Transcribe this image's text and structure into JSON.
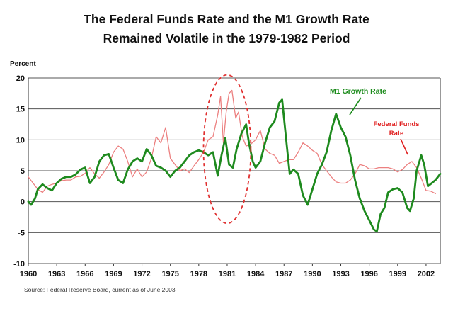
{
  "colors": {
    "m1": "#1e8a1e",
    "fedfunds": "#ec8080",
    "annotation_red": "#e02020",
    "grid": "#555555",
    "circle": "#e03030"
  },
  "chart_data": {
    "type": "line",
    "title": "The Federal Funds Rate and the M1 Growth Rate Remained Volatile in the 1979-1982 Period",
    "title_lines": [
      "The Federal Funds Rate and the M1 Growth Rate",
      "Remained Volatile in the 1979-1982 Period"
    ],
    "ylabel": "Percent",
    "xlabel": "",
    "ylim": [
      -10,
      20
    ],
    "xlim": [
      1960,
      2003.5
    ],
    "grid": true,
    "yticks": [
      {
        "value": 20,
        "label": "20"
      },
      {
        "value": 15,
        "label": "15"
      },
      {
        "value": 10,
        "label": "10"
      },
      {
        "value": 5,
        "label": "5"
      },
      {
        "value": 0,
        "label": "0"
      },
      {
        "value": -5,
        "label": "-5"
      },
      {
        "value": -10,
        "label": "-10"
      }
    ],
    "xticks": [
      {
        "value": 1960,
        "label": "1960"
      },
      {
        "value": 1963,
        "label": "1963"
      },
      {
        "value": 1966,
        "label": "1966"
      },
      {
        "value": 1969,
        "label": "1969"
      },
      {
        "value": 1972,
        "label": "1972"
      },
      {
        "value": 1975,
        "label": "1975"
      },
      {
        "value": 1978,
        "label": "1978"
      },
      {
        "value": 1981,
        "label": "1981"
      },
      {
        "value": 1984,
        "label": "1984"
      },
      {
        "value": 1987,
        "label": "1987"
      },
      {
        "value": 1990,
        "label": "1990"
      },
      {
        "value": 1993,
        "label": "1993"
      },
      {
        "value": 1996,
        "label": "1996"
      },
      {
        "value": 1999,
        "label": "1999"
      },
      {
        "value": 2002,
        "label": "2002"
      }
    ],
    "series": [
      {
        "name": "Federal Funds Rate",
        "label_lines": [
          "Federal Funds",
          "Rate"
        ],
        "color": "#ec8080",
        "points": [
          [
            1960.0,
            4.0
          ],
          [
            1960.5,
            3.0
          ],
          [
            1961.0,
            2.0
          ],
          [
            1961.5,
            1.5
          ],
          [
            1962.0,
            2.5
          ],
          [
            1962.5,
            2.8
          ],
          [
            1963.0,
            3.0
          ],
          [
            1963.5,
            3.4
          ],
          [
            1964.0,
            3.5
          ],
          [
            1964.5,
            3.5
          ],
          [
            1965.0,
            4.0
          ],
          [
            1965.5,
            4.1
          ],
          [
            1966.0,
            4.6
          ],
          [
            1966.5,
            5.5
          ],
          [
            1967.0,
            4.5
          ],
          [
            1967.5,
            3.8
          ],
          [
            1968.0,
            4.8
          ],
          [
            1968.5,
            6.0
          ],
          [
            1969.0,
            8.0
          ],
          [
            1969.5,
            9.0
          ],
          [
            1970.0,
            8.5
          ],
          [
            1970.5,
            6.5
          ],
          [
            1971.0,
            4.0
          ],
          [
            1971.5,
            5.3
          ],
          [
            1972.0,
            4.0
          ],
          [
            1972.5,
            4.8
          ],
          [
            1973.0,
            7.0
          ],
          [
            1973.5,
            10.5
          ],
          [
            1974.0,
            9.5
          ],
          [
            1974.5,
            12.0
          ],
          [
            1975.0,
            7.0
          ],
          [
            1975.5,
            6.0
          ],
          [
            1976.0,
            5.0
          ],
          [
            1976.5,
            5.3
          ],
          [
            1977.0,
            4.7
          ],
          [
            1977.5,
            5.8
          ],
          [
            1978.0,
            6.8
          ],
          [
            1978.5,
            8.0
          ],
          [
            1979.0,
            10.0
          ],
          [
            1979.5,
            10.5
          ],
          [
            1980.0,
            14.0
          ],
          [
            1980.3,
            17.0
          ],
          [
            1980.6,
            9.5
          ],
          [
            1980.9,
            14.5
          ],
          [
            1981.2,
            17.5
          ],
          [
            1981.5,
            18.0
          ],
          [
            1981.9,
            13.5
          ],
          [
            1982.2,
            14.5
          ],
          [
            1982.6,
            10.5
          ],
          [
            1983.0,
            9.0
          ],
          [
            1983.5,
            9.3
          ],
          [
            1984.0,
            10.0
          ],
          [
            1984.5,
            11.5
          ],
          [
            1985.0,
            8.5
          ],
          [
            1985.5,
            7.8
          ],
          [
            1986.0,
            7.5
          ],
          [
            1986.5,
            6.2
          ],
          [
            1987.0,
            6.5
          ],
          [
            1987.5,
            6.8
          ],
          [
            1988.0,
            6.8
          ],
          [
            1988.5,
            8.0
          ],
          [
            1989.0,
            9.5
          ],
          [
            1989.5,
            9.0
          ],
          [
            1990.0,
            8.3
          ],
          [
            1990.5,
            7.8
          ],
          [
            1991.0,
            6.0
          ],
          [
            1991.5,
            5.0
          ],
          [
            1992.0,
            4.0
          ],
          [
            1992.5,
            3.2
          ],
          [
            1993.0,
            3.0
          ],
          [
            1993.5,
            3.0
          ],
          [
            1994.0,
            3.5
          ],
          [
            1994.5,
            4.5
          ],
          [
            1995.0,
            6.0
          ],
          [
            1995.5,
            5.8
          ],
          [
            1996.0,
            5.3
          ],
          [
            1996.5,
            5.3
          ],
          [
            1997.0,
            5.5
          ],
          [
            1997.5,
            5.5
          ],
          [
            1998.0,
            5.5
          ],
          [
            1998.5,
            5.3
          ],
          [
            1999.0,
            4.8
          ],
          [
            1999.5,
            5.2
          ],
          [
            2000.0,
            6.0
          ],
          [
            2000.5,
            6.5
          ],
          [
            2001.0,
            5.5
          ],
          [
            2001.5,
            3.8
          ],
          [
            2002.0,
            1.8
          ],
          [
            2002.5,
            1.7
          ],
          [
            2003.0,
            1.3
          ]
        ]
      },
      {
        "name": "M1 Growth Rate",
        "label_lines": [
          "M1 Growth Rate"
        ],
        "color": "#1e8a1e",
        "points": [
          [
            1960.0,
            0.0
          ],
          [
            1960.3,
            -0.5
          ],
          [
            1960.7,
            0.5
          ],
          [
            1961.0,
            2.0
          ],
          [
            1961.5,
            2.8
          ],
          [
            1962.0,
            2.2
          ],
          [
            1962.5,
            1.8
          ],
          [
            1963.0,
            3.0
          ],
          [
            1963.5,
            3.7
          ],
          [
            1964.0,
            4.0
          ],
          [
            1964.5,
            4.0
          ],
          [
            1965.0,
            4.4
          ],
          [
            1965.5,
            5.2
          ],
          [
            1966.0,
            5.5
          ],
          [
            1966.5,
            3.0
          ],
          [
            1967.0,
            4.0
          ],
          [
            1967.5,
            6.5
          ],
          [
            1968.0,
            7.5
          ],
          [
            1968.5,
            7.7
          ],
          [
            1969.0,
            5.5
          ],
          [
            1969.5,
            3.5
          ],
          [
            1970.0,
            3.0
          ],
          [
            1970.5,
            5.2
          ],
          [
            1971.0,
            6.5
          ],
          [
            1971.5,
            7.0
          ],
          [
            1972.0,
            6.5
          ],
          [
            1972.5,
            8.5
          ],
          [
            1973.0,
            7.5
          ],
          [
            1973.5,
            5.8
          ],
          [
            1974.0,
            5.5
          ],
          [
            1974.5,
            5.0
          ],
          [
            1975.0,
            4.0
          ],
          [
            1975.5,
            5.0
          ],
          [
            1976.0,
            5.5
          ],
          [
            1976.5,
            6.5
          ],
          [
            1977.0,
            7.5
          ],
          [
            1977.5,
            8.0
          ],
          [
            1978.0,
            8.3
          ],
          [
            1978.5,
            8.0
          ],
          [
            1979.0,
            7.5
          ],
          [
            1979.5,
            8.0
          ],
          [
            1980.0,
            4.2
          ],
          [
            1980.4,
            7.5
          ],
          [
            1980.8,
            10.3
          ],
          [
            1981.2,
            6.0
          ],
          [
            1981.6,
            5.5
          ],
          [
            1982.0,
            8.5
          ],
          [
            1982.5,
            11.0
          ],
          [
            1983.0,
            12.5
          ],
          [
            1983.3,
            9.5
          ],
          [
            1983.7,
            6.5
          ],
          [
            1984.0,
            5.5
          ],
          [
            1984.5,
            6.5
          ],
          [
            1985.0,
            9.5
          ],
          [
            1985.5,
            12.0
          ],
          [
            1986.0,
            13.0
          ],
          [
            1986.5,
            16.0
          ],
          [
            1986.8,
            16.5
          ],
          [
            1987.2,
            10.5
          ],
          [
            1987.6,
            4.5
          ],
          [
            1988.0,
            5.2
          ],
          [
            1988.5,
            4.5
          ],
          [
            1989.0,
            1.0
          ],
          [
            1989.5,
            -0.5
          ],
          [
            1990.0,
            2.0
          ],
          [
            1990.5,
            4.5
          ],
          [
            1991.0,
            6.0
          ],
          [
            1991.5,
            8.0
          ],
          [
            1992.0,
            11.5
          ],
          [
            1992.5,
            14.2
          ],
          [
            1993.0,
            12.0
          ],
          [
            1993.5,
            10.5
          ],
          [
            1994.0,
            7.5
          ],
          [
            1994.5,
            3.5
          ],
          [
            1995.0,
            0.5
          ],
          [
            1995.5,
            -1.5
          ],
          [
            1996.0,
            -3.0
          ],
          [
            1996.5,
            -4.5
          ],
          [
            1996.8,
            -4.8
          ],
          [
            1997.2,
            -2.0
          ],
          [
            1997.6,
            -1.0
          ],
          [
            1998.0,
            1.5
          ],
          [
            1998.5,
            2.0
          ],
          [
            1999.0,
            2.2
          ],
          [
            1999.5,
            1.5
          ],
          [
            2000.0,
            -1.0
          ],
          [
            2000.3,
            -1.5
          ],
          [
            2000.7,
            0.5
          ],
          [
            2001.0,
            5.0
          ],
          [
            2001.5,
            7.5
          ],
          [
            2001.8,
            6.0
          ],
          [
            2002.2,
            2.5
          ],
          [
            2002.6,
            3.0
          ],
          [
            2003.0,
            3.5
          ],
          [
            2003.5,
            4.5
          ]
        ]
      }
    ],
    "annotations": [
      {
        "id": "m1",
        "text": "M1 Growth Rate",
        "points_to": [
          1987.0,
          12.0
        ]
      },
      {
        "id": "ff",
        "text_lines": [
          "Federal Funds",
          "Rate"
        ],
        "points_to": [
          2000.3,
          6.3
        ]
      }
    ],
    "highlight": {
      "shape": "dashed-ellipse",
      "x_range": [
        1978.5,
        1983.5
      ],
      "y_range": [
        -3.5,
        20.5
      ]
    },
    "source": "Source:  Federal Reserve Board, current as of June 2003"
  }
}
